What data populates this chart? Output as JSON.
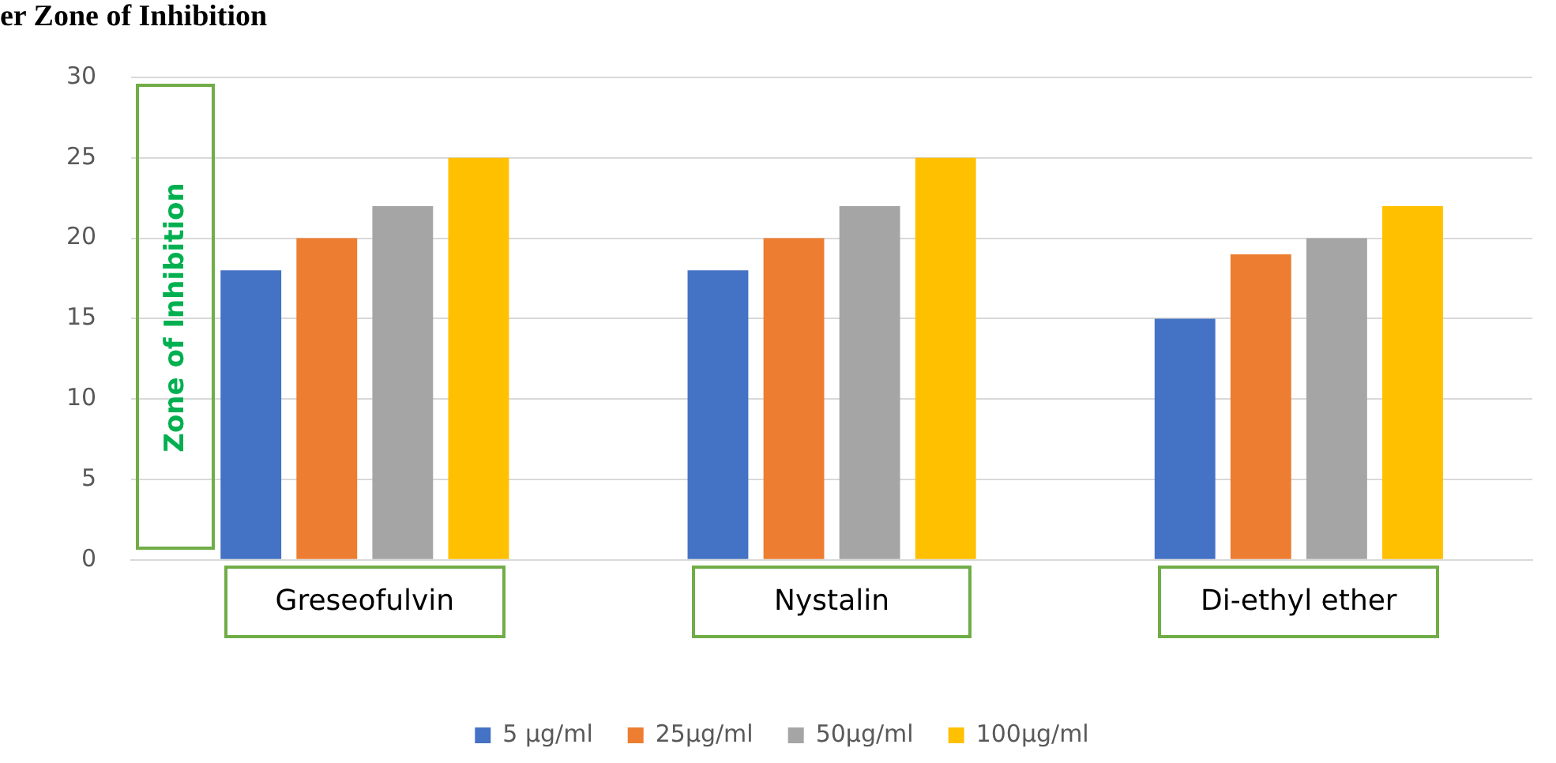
{
  "chart_data": {
    "type": "bar",
    "title": "er Zone of Inhibition",
    "ylabel": "Zone of Inhibition",
    "categories": [
      "Greseofulvin",
      "Nystalin",
      "Di-ethyl ether"
    ],
    "series": [
      {
        "name": "5 µg/ml",
        "color": "#4472c4",
        "values": [
          18,
          18,
          15
        ]
      },
      {
        "name": "25µg/ml",
        "color": "#ed7d31",
        "values": [
          20,
          20,
          19
        ]
      },
      {
        "name": "50µg/ml",
        "color": "#a5a5a5",
        "values": [
          22,
          22,
          20
        ]
      },
      {
        "name": "100µg/ml",
        "color": "#ffc000",
        "values": [
          25,
          25,
          22
        ]
      }
    ],
    "ylim": [
      0,
      30
    ],
    "yticks": [
      0,
      5,
      10,
      15,
      20,
      25,
      30
    ],
    "grid": "y",
    "legend": "bottom"
  }
}
